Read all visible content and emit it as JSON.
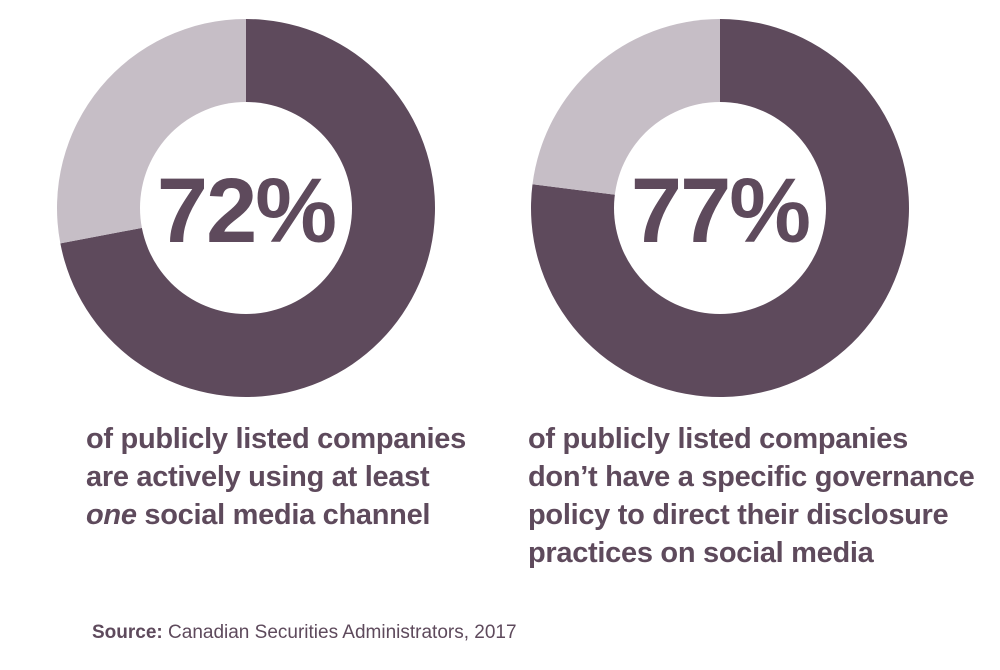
{
  "colors": {
    "primary": "#5e4a5c",
    "secondary": "#c6bec6",
    "hole": "#ffffff"
  },
  "chart_data": [
    {
      "type": "pie",
      "value_percent": 72,
      "label": "72%",
      "slices": [
        {
          "value": 72,
          "color": "#5e4a5c"
        },
        {
          "value": 28,
          "color": "#c6bec6"
        }
      ],
      "caption_lines": [
        "of publicly listed companies",
        "are actively using at least"
      ],
      "caption_emphasis": "one",
      "caption_tail": " social media channel"
    },
    {
      "type": "pie",
      "value_percent": 77,
      "label": "77%",
      "slices": [
        {
          "value": 77,
          "color": "#5e4a5c"
        },
        {
          "value": 23,
          "color": "#c6bec6"
        }
      ],
      "caption_lines": [
        "of publicly listed companies",
        "don’t have a specific governance",
        "policy to direct their disclosure",
        "practices on social media"
      ]
    }
  ],
  "source": {
    "label": "Source:",
    "text": " Canadian Securities Administrators, 2017"
  }
}
